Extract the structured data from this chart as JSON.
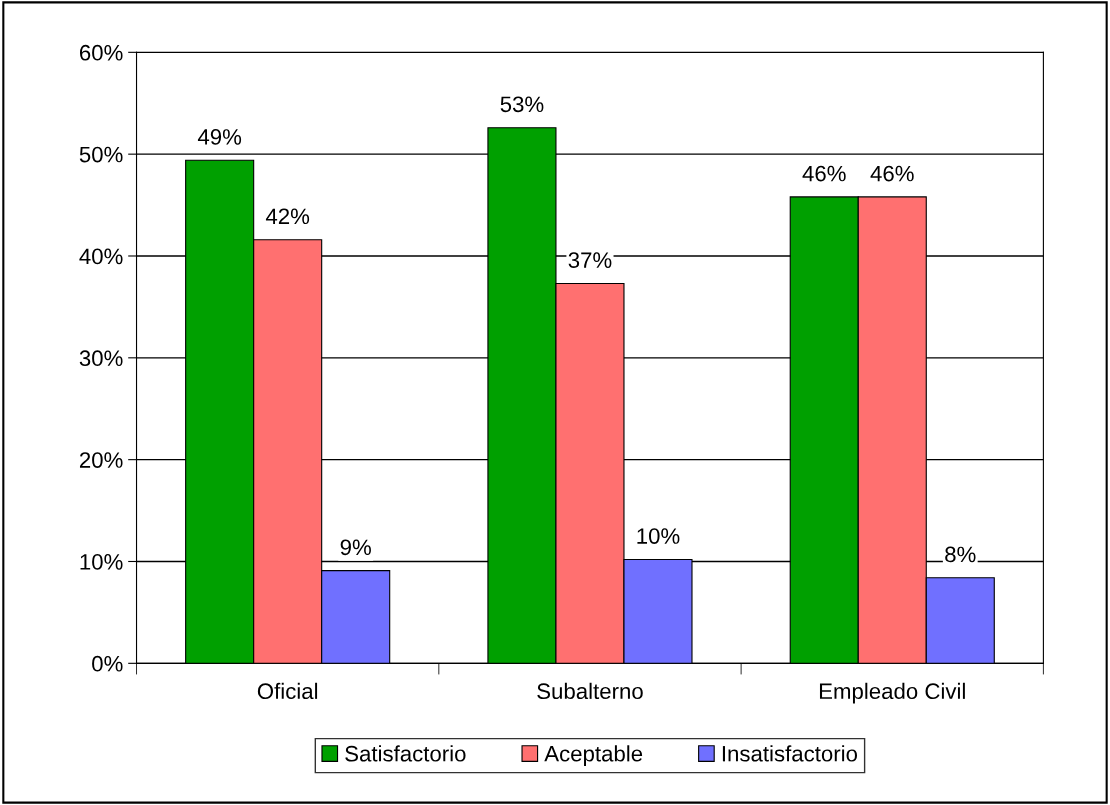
{
  "chart_data": {
    "type": "bar",
    "categories": [
      "Oficial",
      "Subalterno",
      "Empleado Civil"
    ],
    "series": [
      {
        "name": "Satisfactorio",
        "color": "#00a000",
        "values": [
          49.4,
          52.6,
          45.8
        ],
        "value_labels": [
          "49%",
          "53%",
          "46%"
        ]
      },
      {
        "name": "Aceptable",
        "color": "#ff7070",
        "values": [
          41.6,
          37.3,
          45.8
        ],
        "value_labels": [
          "42%",
          "37%",
          "46%"
        ]
      },
      {
        "name": "Insatisfactorio",
        "color": "#7070ff",
        "values": [
          9.1,
          10.2,
          8.4
        ],
        "value_labels": [
          "9%",
          "10%",
          "8%"
        ]
      }
    ],
    "ylim": [
      0,
      60
    ],
    "yticks": [
      {
        "value": 0,
        "label": "0%"
      },
      {
        "value": 10,
        "label": "10%"
      },
      {
        "value": 20,
        "label": "20%"
      },
      {
        "value": 30,
        "label": "30%"
      },
      {
        "value": 40,
        "label": "40%"
      },
      {
        "value": 50,
        "label": "50%"
      },
      {
        "value": 60,
        "label": "60%"
      }
    ],
    "grid": "y",
    "legend": "bottom"
  }
}
